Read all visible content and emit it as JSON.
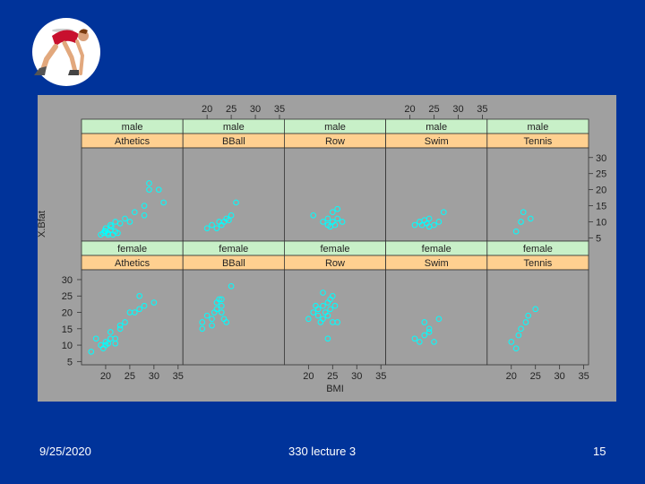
{
  "slide": {
    "date": "9/25/2020",
    "title": "330 lecture 3",
    "page": "15"
  },
  "logo": {
    "icon": "sprinter-at-start-icon"
  },
  "colors": {
    "background": "#00339a",
    "panel_bg": "#a0a0a0",
    "strip_top": "#c8f0c8",
    "strip_bottom": "#ffd090",
    "points": "#00ffff"
  },
  "chart_data": {
    "type": "scatter",
    "xlabel": "BMI",
    "ylabel": "X.Bfat",
    "xlim": [
      15,
      36
    ],
    "ylim": [
      4,
      33
    ],
    "x_ticks": [
      20,
      25,
      30,
      35
    ],
    "y_ticks": [
      5,
      10,
      15,
      20,
      25,
      30
    ],
    "panels": [
      {
        "row": "top",
        "col": 0,
        "sex": "male",
        "sport": "Athetics",
        "points": [
          [
            19,
            6
          ],
          [
            19.5,
            6.5
          ],
          [
            20,
            7
          ],
          [
            20.5,
            6
          ],
          [
            21,
            7.5
          ],
          [
            21.5,
            6
          ],
          [
            22,
            7
          ],
          [
            20,
            8
          ],
          [
            21,
            9
          ],
          [
            22,
            10
          ],
          [
            23,
            9.5
          ],
          [
            24,
            11
          ],
          [
            25,
            10
          ],
          [
            20.5,
            6.5
          ],
          [
            19.8,
            7.2
          ],
          [
            22.5,
            6.5
          ],
          [
            21.2,
            8.5
          ],
          [
            26,
            13
          ],
          [
            28,
            12
          ],
          [
            29,
            22
          ],
          [
            29,
            20
          ],
          [
            31,
            20
          ],
          [
            32,
            16
          ],
          [
            28,
            15
          ]
        ]
      },
      {
        "row": "top",
        "col": 1,
        "sex": "male",
        "sport": "BBall",
        "points": [
          [
            20,
            8
          ],
          [
            21,
            9
          ],
          [
            22,
            8
          ],
          [
            23,
            9
          ],
          [
            22.5,
            10
          ],
          [
            23.5,
            10
          ],
          [
            24,
            11
          ],
          [
            24.5,
            10.5
          ],
          [
            25,
            12
          ],
          [
            26,
            16
          ]
        ]
      },
      {
        "row": "top",
        "col": 2,
        "sex": "male",
        "sport": "Row",
        "points": [
          [
            21,
            12
          ],
          [
            23,
            10
          ],
          [
            24,
            9
          ],
          [
            24,
            11
          ],
          [
            25,
            10
          ],
          [
            25.5,
            9
          ],
          [
            26,
            11
          ],
          [
            25,
            13
          ],
          [
            26,
            14
          ],
          [
            24.5,
            8.5
          ],
          [
            27,
            10
          ]
        ]
      },
      {
        "row": "top",
        "col": 3,
        "sex": "male",
        "sport": "Swim",
        "points": [
          [
            21,
            9
          ],
          [
            22,
            10
          ],
          [
            22.5,
            9
          ],
          [
            23,
            10.5
          ],
          [
            23.5,
            9.5
          ],
          [
            24,
            8.5
          ],
          [
            24,
            11
          ],
          [
            25,
            9
          ],
          [
            26,
            10
          ],
          [
            27,
            13
          ]
        ]
      },
      {
        "row": "top",
        "col": 4,
        "sex": "male",
        "sport": "Tennis",
        "points": [
          [
            21,
            7
          ],
          [
            22,
            10
          ],
          [
            22.5,
            13
          ],
          [
            24,
            11
          ]
        ]
      },
      {
        "row": "bottom",
        "col": 0,
        "sex": "female",
        "sport": "Athetics",
        "points": [
          [
            17,
            8
          ],
          [
            18,
            12
          ],
          [
            19,
            10
          ],
          [
            19.5,
            9
          ],
          [
            20,
            10
          ],
          [
            20,
            11
          ],
          [
            21,
            12
          ],
          [
            20.5,
            10.5
          ],
          [
            21,
            14
          ],
          [
            22,
            12
          ],
          [
            23,
            15
          ],
          [
            23,
            16
          ],
          [
            22,
            10.5
          ],
          [
            24,
            17
          ],
          [
            25,
            20
          ],
          [
            26,
            20
          ],
          [
            27,
            21
          ],
          [
            27,
            25
          ],
          [
            28,
            22
          ],
          [
            30,
            23
          ]
        ]
      },
      {
        "row": "bottom",
        "col": 1,
        "sex": "female",
        "sport": "BBall",
        "points": [
          [
            19,
            15
          ],
          [
            19,
            17
          ],
          [
            20,
            19
          ],
          [
            21,
            16
          ],
          [
            21,
            18
          ],
          [
            21.5,
            20
          ],
          [
            22,
            21
          ],
          [
            22,
            23
          ],
          [
            22.5,
            24
          ],
          [
            23,
            24
          ],
          [
            23,
            22
          ],
          [
            23,
            20
          ],
          [
            23.5,
            18
          ],
          [
            24,
            17
          ],
          [
            25,
            28
          ]
        ]
      },
      {
        "row": "bottom",
        "col": 2,
        "sex": "female",
        "sport": "Row",
        "points": [
          [
            20,
            18
          ],
          [
            21,
            20
          ],
          [
            22,
            19
          ],
          [
            22,
            21
          ],
          [
            22.5,
            17
          ],
          [
            23,
            18
          ],
          [
            23,
            22
          ],
          [
            23.5,
            20
          ],
          [
            24,
            19
          ],
          [
            24,
            23
          ],
          [
            24.5,
            21
          ],
          [
            24.5,
            24
          ],
          [
            25,
            17
          ],
          [
            25,
            25
          ],
          [
            25.5,
            22
          ],
          [
            26,
            17
          ],
          [
            23,
            26
          ],
          [
            24,
            12
          ],
          [
            21.5,
            22
          ]
        ]
      },
      {
        "row": "bottom",
        "col": 3,
        "sex": "female",
        "sport": "Swim",
        "points": [
          [
            21,
            12
          ],
          [
            22,
            11
          ],
          [
            23,
            13
          ],
          [
            23,
            17
          ],
          [
            24,
            14
          ],
          [
            25,
            11
          ],
          [
            26,
            18
          ],
          [
            24,
            15
          ]
        ]
      },
      {
        "row": "bottom",
        "col": 4,
        "sex": "female",
        "sport": "Tennis",
        "points": [
          [
            20,
            11
          ],
          [
            21,
            9
          ],
          [
            21.5,
            13
          ],
          [
            22,
            15
          ],
          [
            23,
            17
          ],
          [
            23.5,
            19
          ],
          [
            25,
            21
          ]
        ]
      }
    ]
  }
}
